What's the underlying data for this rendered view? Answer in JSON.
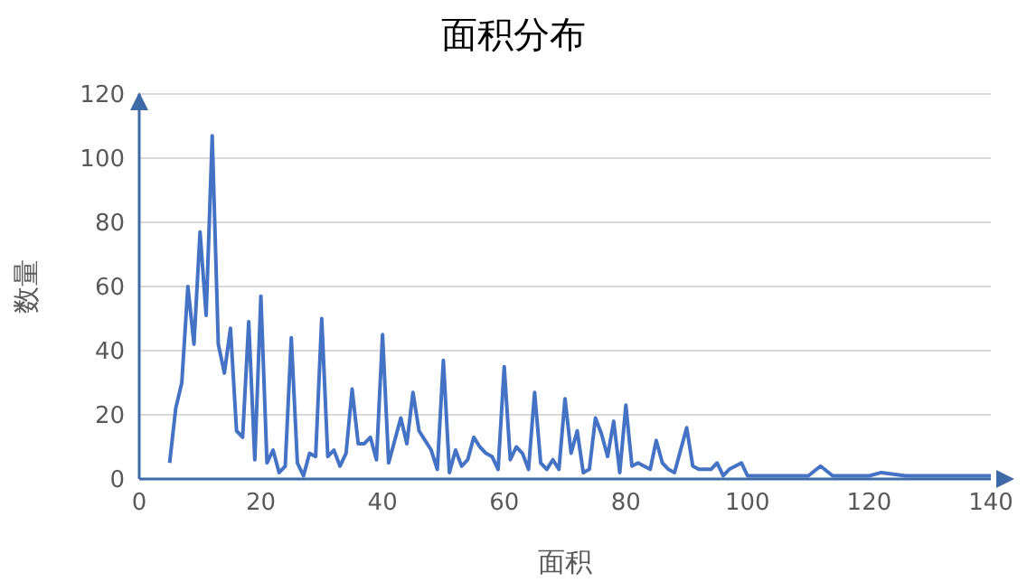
{
  "chart_data": {
    "type": "line",
    "title": "面积分布",
    "xlabel": "面积",
    "ylabel": "数量",
    "x": [
      5,
      6,
      7,
      8,
      9,
      10,
      11,
      12,
      13,
      14,
      15,
      16,
      17,
      18,
      19,
      20,
      21,
      22,
      23,
      24,
      25,
      26,
      27,
      28,
      29,
      30,
      31,
      32,
      33,
      34,
      35,
      36,
      37,
      38,
      39,
      40,
      41,
      42,
      43,
      44,
      45,
      46,
      47,
      48,
      49,
      50,
      51,
      52,
      53,
      54,
      55,
      56,
      57,
      58,
      59,
      60,
      61,
      62,
      63,
      64,
      65,
      66,
      67,
      68,
      69,
      70,
      71,
      72,
      73,
      74,
      75,
      76,
      77,
      78,
      79,
      80,
      81,
      82,
      83,
      84,
      85,
      86,
      87,
      88,
      89,
      90,
      91,
      92,
      93,
      94,
      95,
      96,
      97,
      98,
      99,
      100,
      105,
      110,
      112,
      114,
      118,
      120,
      122,
      126,
      130,
      135,
      140
    ],
    "series": [
      {
        "color": "#4472c4",
        "values": [
          5,
          22,
          30,
          60,
          42,
          77,
          51,
          107,
          42,
          33,
          47,
          15,
          13,
          49,
          6,
          57,
          5,
          9,
          2,
          4,
          44,
          5,
          1,
          8,
          7,
          50,
          7,
          9,
          4,
          8,
          28,
          11,
          11,
          13,
          6,
          45,
          5,
          12,
          19,
          11,
          27,
          15,
          12,
          9,
          3,
          37,
          2,
          9,
          4,
          6,
          13,
          10,
          8,
          7,
          3,
          35,
          6,
          10,
          8,
          3,
          27,
          5,
          3,
          6,
          3,
          25,
          8,
          15,
          2,
          3,
          19,
          14,
          7,
          18,
          2,
          23,
          4,
          5,
          4,
          3,
          12,
          5,
          3,
          2,
          9,
          16,
          4,
          3,
          3,
          3,
          5,
          1,
          3,
          4,
          5,
          1,
          1,
          1,
          4,
          1,
          1,
          1,
          2,
          1,
          1,
          1,
          1
        ]
      }
    ],
    "xlim": [
      0,
      140
    ],
    "xticks": [
      0,
      20,
      40,
      60,
      80,
      100,
      120,
      140
    ],
    "ylim": [
      0,
      120
    ],
    "yticks": [
      0,
      20,
      40,
      60,
      80,
      100,
      120
    ],
    "grid": "y",
    "legend": false,
    "marker": "none",
    "line_style": "solid"
  }
}
